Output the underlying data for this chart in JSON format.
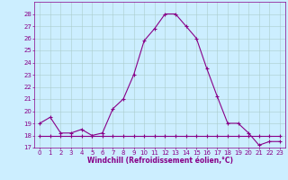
{
  "title": "",
  "xlabel": "Windchill (Refroidissement éolien,°C)",
  "x": [
    0,
    1,
    2,
    3,
    4,
    5,
    6,
    7,
    8,
    9,
    10,
    11,
    12,
    13,
    14,
    15,
    16,
    17,
    18,
    19,
    20,
    21,
    22,
    23
  ],
  "y_temp": [
    19.0,
    19.5,
    18.2,
    18.2,
    18.5,
    18.0,
    18.2,
    20.2,
    21.0,
    23.0,
    25.8,
    26.8,
    28.0,
    28.0,
    27.0,
    26.0,
    23.5,
    21.2,
    19.0,
    19.0,
    18.2,
    17.2,
    17.5,
    17.5
  ],
  "y_wind": [
    18.0,
    18.0,
    18.0,
    18.0,
    18.0,
    18.0,
    18.0,
    18.0,
    18.0,
    18.0,
    18.0,
    18.0,
    18.0,
    18.0,
    18.0,
    18.0,
    18.0,
    18.0,
    18.0,
    18.0,
    18.0,
    18.0,
    18.0,
    18.0
  ],
  "line_color": "#880088",
  "bg_color": "#cceeff",
  "grid_color": "#aacccc",
  "ylim": [
    17,
    29
  ],
  "xlim": [
    -0.5,
    23.5
  ],
  "yticks": [
    17,
    18,
    19,
    20,
    21,
    22,
    23,
    24,
    25,
    26,
    27,
    28
  ],
  "xticks": [
    0,
    1,
    2,
    3,
    4,
    5,
    6,
    7,
    8,
    9,
    10,
    11,
    12,
    13,
    14,
    15,
    16,
    17,
    18,
    19,
    20,
    21,
    22,
    23
  ],
  "tick_fontsize": 5.0,
  "label_fontsize": 5.5,
  "marker": "+",
  "markersize": 3,
  "linewidth": 0.8
}
